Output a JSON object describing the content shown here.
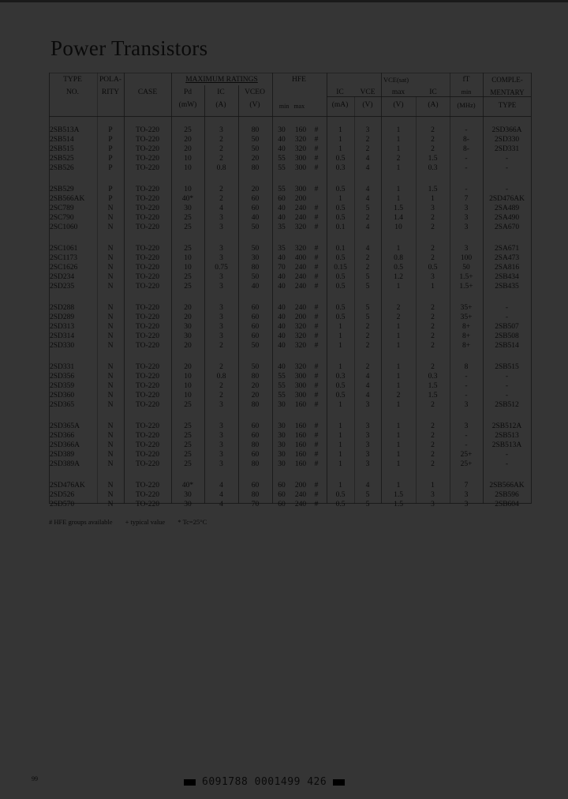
{
  "title": "Power Transistors",
  "header": {
    "type": [
      "TYPE",
      "NO."
    ],
    "polarity": [
      "POLA-",
      "RITY"
    ],
    "case": "CASE",
    "max_ratings": "MAXIMUM RATINGS",
    "pd": [
      "Pd",
      "(mW)"
    ],
    "ic": [
      "IC",
      "(A)"
    ],
    "vceo": [
      "VCEO",
      "(V)"
    ],
    "hfe": "HFE",
    "hfe_minmax": "min   max",
    "hfe_ic": [
      "IC",
      "(mA)"
    ],
    "hfe_vce": [
      "VCE",
      "(V)"
    ],
    "vcesat": "VCE(sat)",
    "vcesat_max": [
      "max",
      "(V)"
    ],
    "vcesat_ic": [
      "IC",
      "(A)"
    ],
    "ft": [
      "fT",
      "min",
      "(MHz)"
    ],
    "comp": [
      "COMPLE-",
      "MENTARY",
      "TYPE"
    ]
  },
  "groups": [
    [
      [
        "2SB513A",
        "P",
        "TO-220",
        "25",
        "3",
        "80",
        "30",
        "160",
        "#",
        "1",
        "3",
        "1",
        "2",
        "-",
        "2SD366A"
      ],
      [
        "2SB514",
        "P",
        "TO-220",
        "20",
        "2",
        "50",
        "40",
        "320",
        "#",
        "1",
        "2",
        "1",
        "2",
        "8-",
        "2SD330"
      ],
      [
        "2SB515",
        "P",
        "TO-220",
        "20",
        "2",
        "50",
        "40",
        "320",
        "#",
        "1",
        "2",
        "1",
        "2",
        "8-",
        "2SD331"
      ],
      [
        "2SB525",
        "P",
        "TO-220",
        "10",
        "2",
        "20",
        "55",
        "300",
        "#",
        "0.5",
        "4",
        "2",
        "1.5",
        "-",
        "-"
      ],
      [
        "2SB526",
        "P",
        "TO-220",
        "10",
        "0.8",
        "80",
        "55",
        "300",
        "#",
        "0.3",
        "4",
        "1",
        "0.3",
        "-",
        "-"
      ]
    ],
    [
      [
        "2SB529",
        "P",
        "TO-220",
        "10",
        "2",
        "20",
        "55",
        "300",
        "#",
        "0.5",
        "4",
        "1",
        "1.5",
        "-",
        "-"
      ],
      [
        "2SB566AK",
        "P",
        "TO-220",
        "40*",
        "2",
        "60",
        "60",
        "200",
        "",
        "1",
        "4",
        "1",
        "1",
        "7",
        "2SD476AK"
      ],
      [
        "2SC789",
        "N",
        "TO-220",
        "30",
        "4",
        "60",
        "40",
        "240",
        "#",
        "0.5",
        "5",
        "1.5",
        "3",
        "3",
        "2SA489"
      ],
      [
        "2SC790",
        "N",
        "TO-220",
        "25",
        "3",
        "40",
        "40",
        "240",
        "#",
        "0.5",
        "2",
        "1.4",
        "2",
        "3",
        "2SA490"
      ],
      [
        "2SC1060",
        "N",
        "TO-220",
        "25",
        "3",
        "50",
        "35",
        "320",
        "#",
        "0.1",
        "4",
        "10",
        "2",
        "3",
        "2SA670"
      ]
    ],
    [
      [
        "2SC1061",
        "N",
        "TO-220",
        "25",
        "3",
        "50",
        "35",
        "320",
        "#",
        "0.1",
        "4",
        "1",
        "2",
        "3",
        "2SA671"
      ],
      [
        "2SC1173",
        "N",
        "TO-220",
        "10",
        "3",
        "30",
        "40",
        "400",
        "#",
        "0.5",
        "2",
        "0.8",
        "2",
        "100",
        "2SA473"
      ],
      [
        "2SC1626",
        "N",
        "TO-220",
        "10",
        "0.75",
        "80",
        "70",
        "240",
        "#",
        "0.15",
        "2",
        "0.5",
        "0.5",
        "50",
        "2SA816"
      ],
      [
        "2SD234",
        "N",
        "TO-220",
        "25",
        "3",
        "50",
        "40",
        "240",
        "#",
        "0.5",
        "5",
        "1.2",
        "3",
        "1.5+",
        "2SB434"
      ],
      [
        "2SD235",
        "N",
        "TO-220",
        "25",
        "3",
        "40",
        "40",
        "240",
        "#",
        "0.5",
        "5",
        "1",
        "1",
        "1.5+",
        "2SB435"
      ]
    ],
    [
      [
        "2SD288",
        "N",
        "TO-220",
        "20",
        "3",
        "60",
        "40",
        "240",
        "#",
        "0.5",
        "5",
        "2",
        "2",
        "35+",
        "-"
      ],
      [
        "2SD289",
        "N",
        "TO-220",
        "20",
        "3",
        "60",
        "40",
        "200",
        "#",
        "0.5",
        "5",
        "2",
        "2",
        "35+",
        "-"
      ],
      [
        "2SD313",
        "N",
        "TO-220",
        "30",
        "3",
        "60",
        "40",
        "320",
        "#",
        "1",
        "2",
        "1",
        "2",
        "8+",
        "2SB507"
      ],
      [
        "2SD314",
        "N",
        "TO-220",
        "30",
        "3",
        "60",
        "40",
        "320",
        "#",
        "1",
        "2",
        "1",
        "2",
        "8+",
        "2SB508"
      ],
      [
        "2SD330",
        "N",
        "TO-220",
        "20",
        "2",
        "50",
        "40",
        "320",
        "#",
        "1",
        "2",
        "1",
        "2",
        "8+",
        "2SB514"
      ]
    ],
    [
      [
        "2SD331",
        "N",
        "TO-220",
        "20",
        "2",
        "50",
        "40",
        "320",
        "#",
        "1",
        "2",
        "1",
        "2",
        "8",
        "2SB515"
      ],
      [
        "2SD356",
        "N",
        "TO-220",
        "10",
        "0.8",
        "80",
        "55",
        "300",
        "#",
        "0.3",
        "4",
        "1",
        "0.3",
        "-",
        "-"
      ],
      [
        "2SD359",
        "N",
        "TO-220",
        "10",
        "2",
        "20",
        "55",
        "300",
        "#",
        "0.5",
        "4",
        "1",
        "1.5",
        "-",
        "-"
      ],
      [
        "2SD360",
        "N",
        "TO-220",
        "10",
        "2",
        "20",
        "55",
        "300",
        "#",
        "0.5",
        "4",
        "2",
        "1.5",
        "-",
        "-"
      ],
      [
        "2SD365",
        "N",
        "TO-220",
        "25",
        "3",
        "80",
        "30",
        "160",
        "#",
        "1",
        "3",
        "1",
        "2",
        "3",
        "2SB512"
      ]
    ],
    [
      [
        "2SD365A",
        "N",
        "TO-220",
        "25",
        "3",
        "60",
        "30",
        "160",
        "#",
        "1",
        "3",
        "1",
        "2",
        "3",
        "2SB512A"
      ],
      [
        "2SD366",
        "N",
        "TO-220",
        "25",
        "3",
        "60",
        "30",
        "160",
        "#",
        "1",
        "3",
        "1",
        "2",
        "-",
        "2SB513"
      ],
      [
        "2SD366A",
        "N",
        "TO-220",
        "25",
        "3",
        "80",
        "30",
        "160",
        "#",
        "1",
        "3",
        "1",
        "2",
        "-",
        "2SB513A"
      ],
      [
        "2SD389",
        "N",
        "TO-220",
        "25",
        "3",
        "60",
        "30",
        "160",
        "#",
        "1",
        "3",
        "1",
        "2",
        "25+",
        "-"
      ],
      [
        "2SD389A",
        "N",
        "TO-220",
        "25",
        "3",
        "80",
        "30",
        "160",
        "#",
        "1",
        "3",
        "1",
        "2",
        "25+",
        "-"
      ]
    ],
    [
      [
        "2SD476AK",
        "N",
        "TO-220",
        "40*",
        "4",
        "60",
        "60",
        "200",
        "#",
        "1",
        "4",
        "1",
        "1",
        "7",
        "2SB566AK"
      ],
      [
        "2SD526",
        "N",
        "TO-220",
        "30",
        "4",
        "80",
        "60",
        "240",
        "#",
        "0.5",
        "5",
        "1.5",
        "3",
        "3",
        "2SB596"
      ],
      [
        "2SD570",
        "N",
        "TO-220",
        "30",
        "4",
        "70",
        "60",
        "240",
        "#",
        "0.5",
        "5",
        "1.5",
        "3",
        "3",
        "2SB604"
      ]
    ]
  ],
  "footnotes": [
    "# HFE groups available",
    "+ typical value",
    "* Tc=25°C"
  ],
  "page_number": "99",
  "barcode_text": "6091788 0001499 426"
}
